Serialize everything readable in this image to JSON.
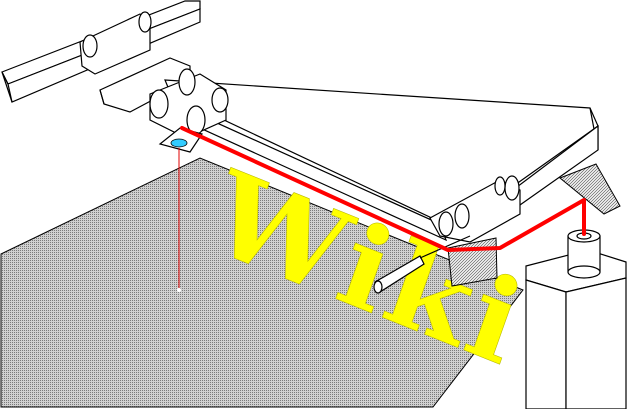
{
  "engraved_text": "Wiki",
  "colors": {
    "background": "#ffffff",
    "line": "#000000",
    "machine_fill": "#ffffff",
    "workpiece_pattern_dark": "#7a7a7a",
    "workpiece_pattern_light": "#d0d0d0",
    "mirror_pattern_dark": "#888888",
    "mirror_pattern_light": "#e6e6e6",
    "laser_beam": "#ff0000",
    "focused_beam": "#e00000",
    "engraving": "#ffff00",
    "lens": "#33ccff"
  }
}
